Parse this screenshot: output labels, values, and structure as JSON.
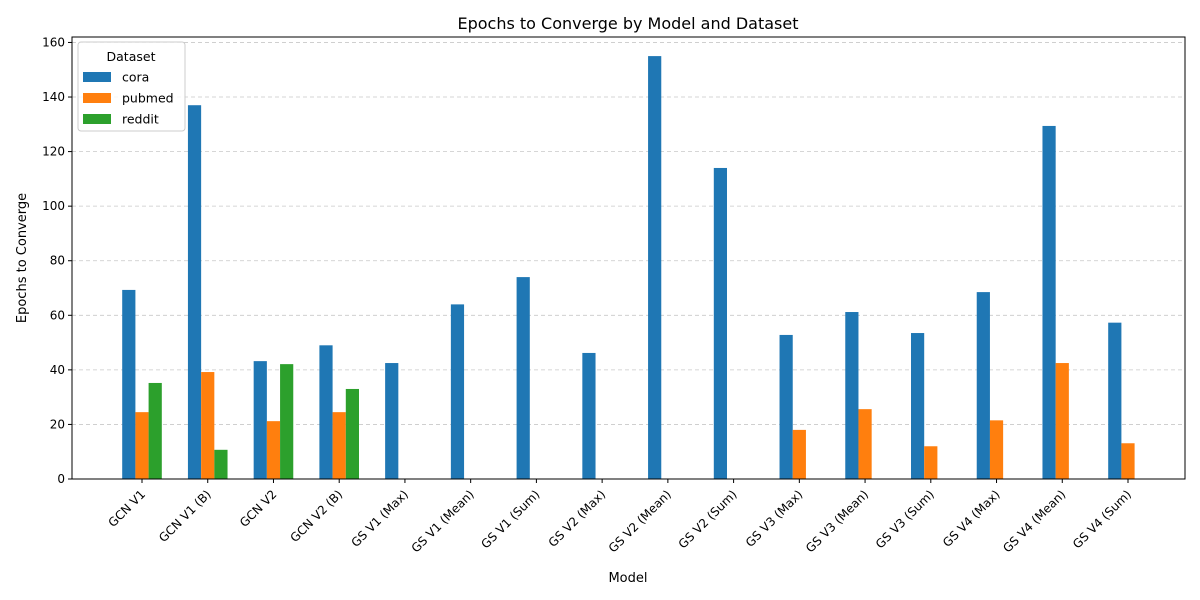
{
  "chart_data": {
    "type": "bar",
    "title": "Epochs to Converge by Model and Dataset",
    "xlabel": "Model",
    "ylabel": "Epochs to Converge",
    "ylim": [
      0,
      162
    ],
    "yticks": [
      0,
      20,
      40,
      60,
      80,
      100,
      120,
      140,
      160
    ],
    "grid": "y-dashed",
    "legend": {
      "title": "Dataset",
      "placement": "top-left"
    },
    "categories": [
      "GCN V1",
      "GCN V1 (B)",
      "GCN V2",
      "GCN V2 (B)",
      "GS V1 (Max)",
      "GS V1 (Mean)",
      "GS V1 (Sum)",
      "GS V2 (Max)",
      "GS V2 (Mean)",
      "GS V2 (Sum)",
      "GS V3 (Max)",
      "GS V3 (Mean)",
      "GS V3 (Sum)",
      "GS V4 (Max)",
      "GS V4 (Mean)",
      "GS V4 (Sum)"
    ],
    "series": [
      {
        "name": "cora",
        "color": "#1f77b4",
        "values": [
          69.3,
          137,
          43.2,
          49,
          42.5,
          64,
          74,
          46.2,
          155,
          114,
          52.8,
          61.2,
          53.5,
          68.5,
          129.4,
          57.3
        ]
      },
      {
        "name": "pubmed",
        "color": "#ff7f0e",
        "values": [
          24.5,
          39.2,
          21.2,
          24.5,
          0,
          0,
          0,
          0,
          0,
          0,
          18,
          25.6,
          12,
          21.5,
          42.5,
          13.1
        ]
      },
      {
        "name": "reddit",
        "color": "#2ca02c",
        "values": [
          35.2,
          10.7,
          42.1,
          33,
          0,
          0,
          0,
          0,
          0,
          0,
          0,
          0,
          0,
          0,
          0,
          0
        ]
      }
    ]
  }
}
